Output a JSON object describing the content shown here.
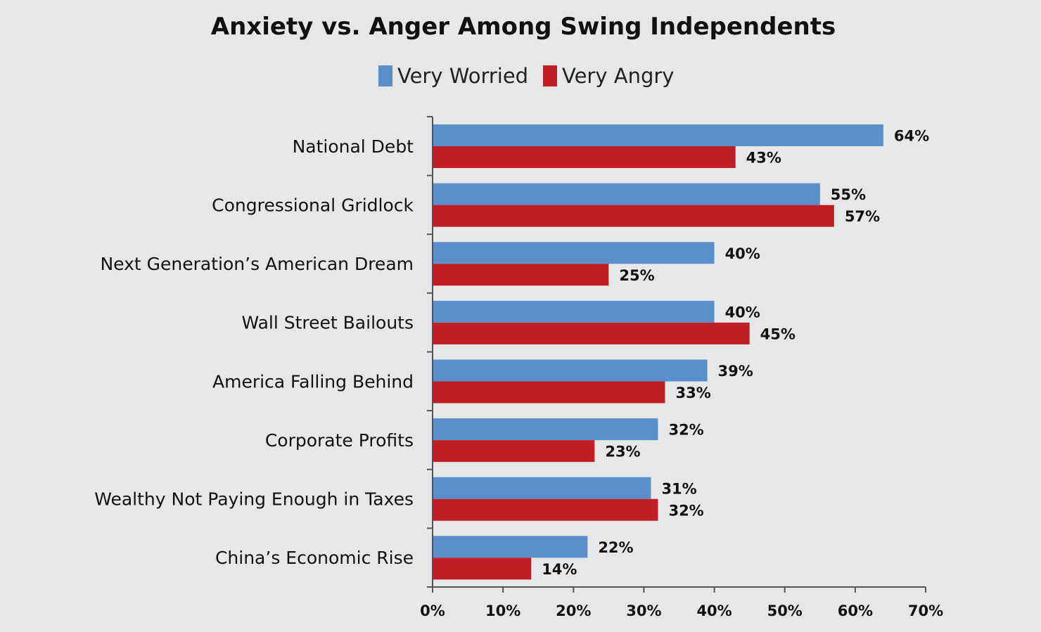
{
  "chart_data": {
    "type": "bar",
    "orientation": "horizontal",
    "title": "Anxiety vs. Anger Among Swing Independents",
    "categories": [
      "National Debt",
      "Congressional Gridlock",
      "Next Generation’s American Dream",
      "Wall Street Bailouts",
      "America Falling Behind",
      "Corporate Profits",
      "Wealthy Not Paying Enough in Taxes",
      "China’s Economic Rise"
    ],
    "series": [
      {
        "name": "Very Worried",
        "color": "#5b8fcc",
        "values": [
          64,
          55,
          40,
          40,
          39,
          32,
          31,
          22
        ]
      },
      {
        "name": "Very Angry",
        "color": "#c01d24",
        "values": [
          43,
          57,
          25,
          45,
          33,
          23,
          32,
          14
        ]
      }
    ],
    "value_format": "percent",
    "xlim": [
      0,
      70
    ],
    "xticks": [
      0,
      10,
      20,
      30,
      40,
      50,
      60,
      70
    ],
    "xtick_labels": [
      "0%",
      "10%",
      "20%",
      "30%",
      "40%",
      "50%",
      "60%",
      "70%"
    ],
    "legend_position": "top-center",
    "grid": false
  }
}
